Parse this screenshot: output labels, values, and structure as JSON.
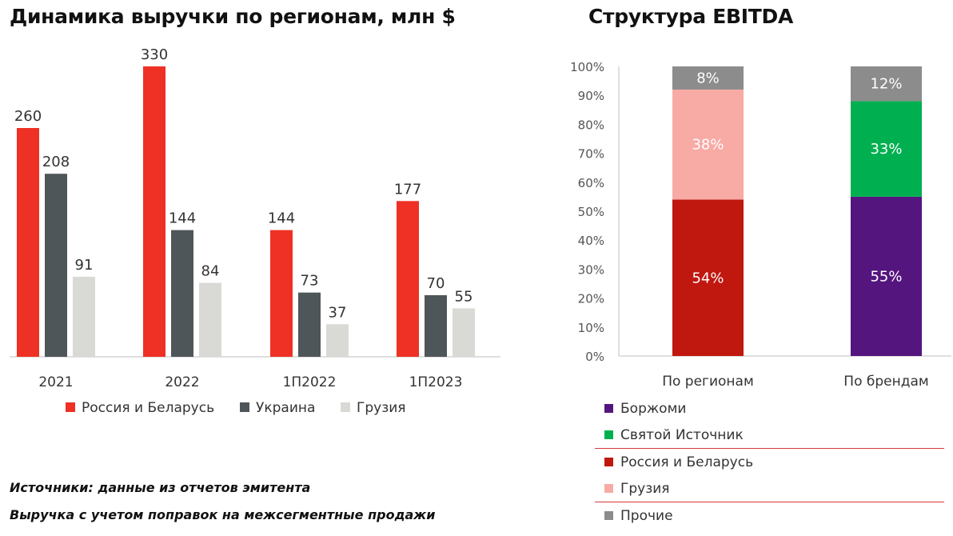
{
  "titles": {
    "left": "Динамика выручки по регионам, млн $",
    "right": "Структура EBITDA"
  },
  "notes": [
    "Источники: данные из отчетов эмитента",
    "Выручка с учетом поправок на межсегментные продажи"
  ],
  "chart_data": [
    {
      "type": "bar",
      "title": "Динамика выручки по регионам, млн $",
      "categories": [
        "2021",
        "2022",
        "1П2022",
        "1П2023"
      ],
      "series": [
        {
          "name": "Россия и Беларусь",
          "color": "#ee3124",
          "values": [
            260,
            330,
            144,
            177
          ]
        },
        {
          "name": "Украина",
          "color": "#4f5659",
          "values": [
            208,
            144,
            73,
            70
          ]
        },
        {
          "name": "Грузия",
          "color": "#d9d9d6",
          "values": [
            91,
            84,
            37,
            55
          ]
        }
      ],
      "legend": "bottom",
      "grid": false,
      "ylim": [
        0,
        330
      ]
    },
    {
      "type": "bar",
      "stacked": true,
      "title": "Структура EBITDA",
      "categories": [
        "По регионам",
        "По брендам"
      ],
      "series": [
        {
          "name": "Россия и Беларусь",
          "color": "#c0170f",
          "values": [
            54,
            null
          ],
          "labels": [
            "54%",
            null
          ]
        },
        {
          "name": "Грузия",
          "color": "#f8aaa5",
          "values": [
            38,
            null
          ],
          "labels": [
            "38%",
            null
          ]
        },
        {
          "name": "Боржоми",
          "color": "#55157f",
          "values": [
            null,
            55
          ],
          "labels": [
            null,
            "55%"
          ]
        },
        {
          "name": "Святой Источник",
          "color": "#00b050",
          "values": [
            null,
            33
          ],
          "labels": [
            null,
            "33%"
          ]
        },
        {
          "name": "Прочие",
          "color": "#8c8c8c",
          "values": [
            8,
            12
          ],
          "labels": [
            "8%",
            "12%"
          ]
        }
      ],
      "yticks": [
        "0%",
        "10%",
        "20%",
        "30%",
        "40%",
        "50%",
        "60%",
        "70%",
        "80%",
        "90%",
        "100%"
      ],
      "ylim": [
        0,
        100
      ],
      "legend": "bottom",
      "legend_entries": [
        "Боржоми",
        "Святой Источник",
        "Россия и Беларусь",
        "Грузия",
        "Прочие"
      ],
      "grid": false
    }
  ]
}
